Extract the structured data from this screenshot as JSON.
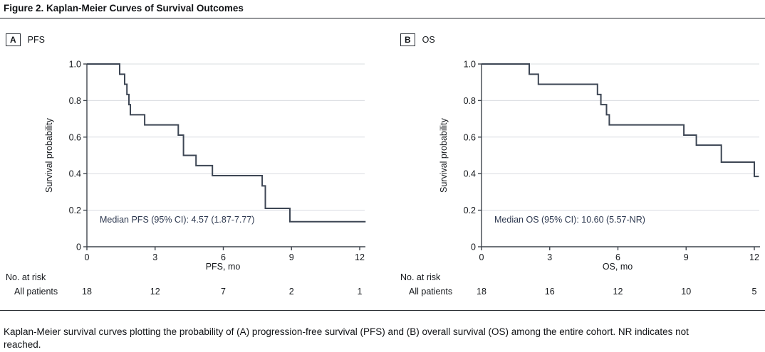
{
  "figure": {
    "title": "Figure 2. Kaplan-Meier Curves of Survival Outcomes",
    "caption": "Kaplan-Meier survival curves plotting the probability of (A) progression-free survival (PFS) and (B) overall survival (OS) among the entire cohort. NR indicates not reached."
  },
  "colors": {
    "curve": "#3d4654",
    "grid": "#d9dce1",
    "axis": "#3f454d",
    "text": "#15181c",
    "annotation": "#2e3950"
  },
  "chart_data": [
    {
      "type": "line",
      "subtype": "kaplan-meier-step",
      "panel": "A",
      "title": "PFS",
      "xlabel": "PFS, mo",
      "ylabel": "Survival probability",
      "xlim": [
        0,
        12.3
      ],
      "ylim": [
        0,
        1
      ],
      "xticks": [
        0,
        3,
        6,
        9,
        12
      ],
      "xtick_labels": [
        "0",
        "3",
        "6",
        "9",
        "12"
      ],
      "yticks": [
        0,
        0.2,
        0.4,
        0.6,
        0.8,
        1.0
      ],
      "ytick_labels": [
        "0",
        "0.2",
        "0.4",
        "0.6",
        "0.8",
        "1.0"
      ],
      "grid": "horizontal-only",
      "annotation": "Median PFS (95% CI): 4.57 (1.87-7.77)",
      "steps": [
        [
          0,
          1.0
        ],
        [
          1.44,
          0.944
        ],
        [
          1.66,
          0.889
        ],
        [
          1.76,
          0.833
        ],
        [
          1.85,
          0.778
        ],
        [
          1.91,
          0.722
        ],
        [
          2.54,
          0.667
        ],
        [
          4.02,
          0.611
        ],
        [
          4.25,
          0.5
        ],
        [
          4.8,
          0.444
        ],
        [
          5.52,
          0.389
        ],
        [
          7.71,
          0.333
        ],
        [
          7.85,
          0.21
        ],
        [
          8.93,
          0.137
        ],
        [
          12.26,
          0.137
        ]
      ],
      "at_risk": {
        "label": "No. at risk",
        "group": "All patients",
        "times": [
          0,
          3,
          6,
          9,
          12
        ],
        "values": [
          18,
          12,
          7,
          2,
          1
        ]
      }
    },
    {
      "type": "line",
      "subtype": "kaplan-meier-step",
      "panel": "B",
      "title": "OS",
      "xlabel": "OS, mo",
      "ylabel": "Survival probability",
      "xlim": [
        0,
        12.3
      ],
      "ylim": [
        0,
        1
      ],
      "xticks": [
        0,
        3,
        6,
        9,
        12
      ],
      "xtick_labels": [
        "0",
        "3",
        "6",
        "9",
        "12"
      ],
      "yticks": [
        0,
        0.2,
        0.4,
        0.6,
        0.8,
        1.0
      ],
      "ytick_labels": [
        "0",
        "0.2",
        "0.4",
        "0.6",
        "0.8",
        "1.0"
      ],
      "grid": "horizontal-only",
      "annotation": "Median OS (95% CI): 10.60 (5.57-NR)",
      "steps": [
        [
          0,
          1.0
        ],
        [
          2.1,
          0.944
        ],
        [
          2.5,
          0.889
        ],
        [
          5.1,
          0.833
        ],
        [
          5.25,
          0.778
        ],
        [
          5.5,
          0.722
        ],
        [
          5.62,
          0.667
        ],
        [
          8.9,
          0.611
        ],
        [
          9.45,
          0.556
        ],
        [
          10.55,
          0.463
        ],
        [
          12.0,
          0.385
        ],
        [
          12.2,
          0.385
        ]
      ],
      "at_risk": {
        "label": "No. at risk",
        "group": "All patients",
        "times": [
          0,
          3,
          6,
          9,
          12
        ],
        "values": [
          18,
          16,
          12,
          10,
          5
        ]
      }
    }
  ]
}
